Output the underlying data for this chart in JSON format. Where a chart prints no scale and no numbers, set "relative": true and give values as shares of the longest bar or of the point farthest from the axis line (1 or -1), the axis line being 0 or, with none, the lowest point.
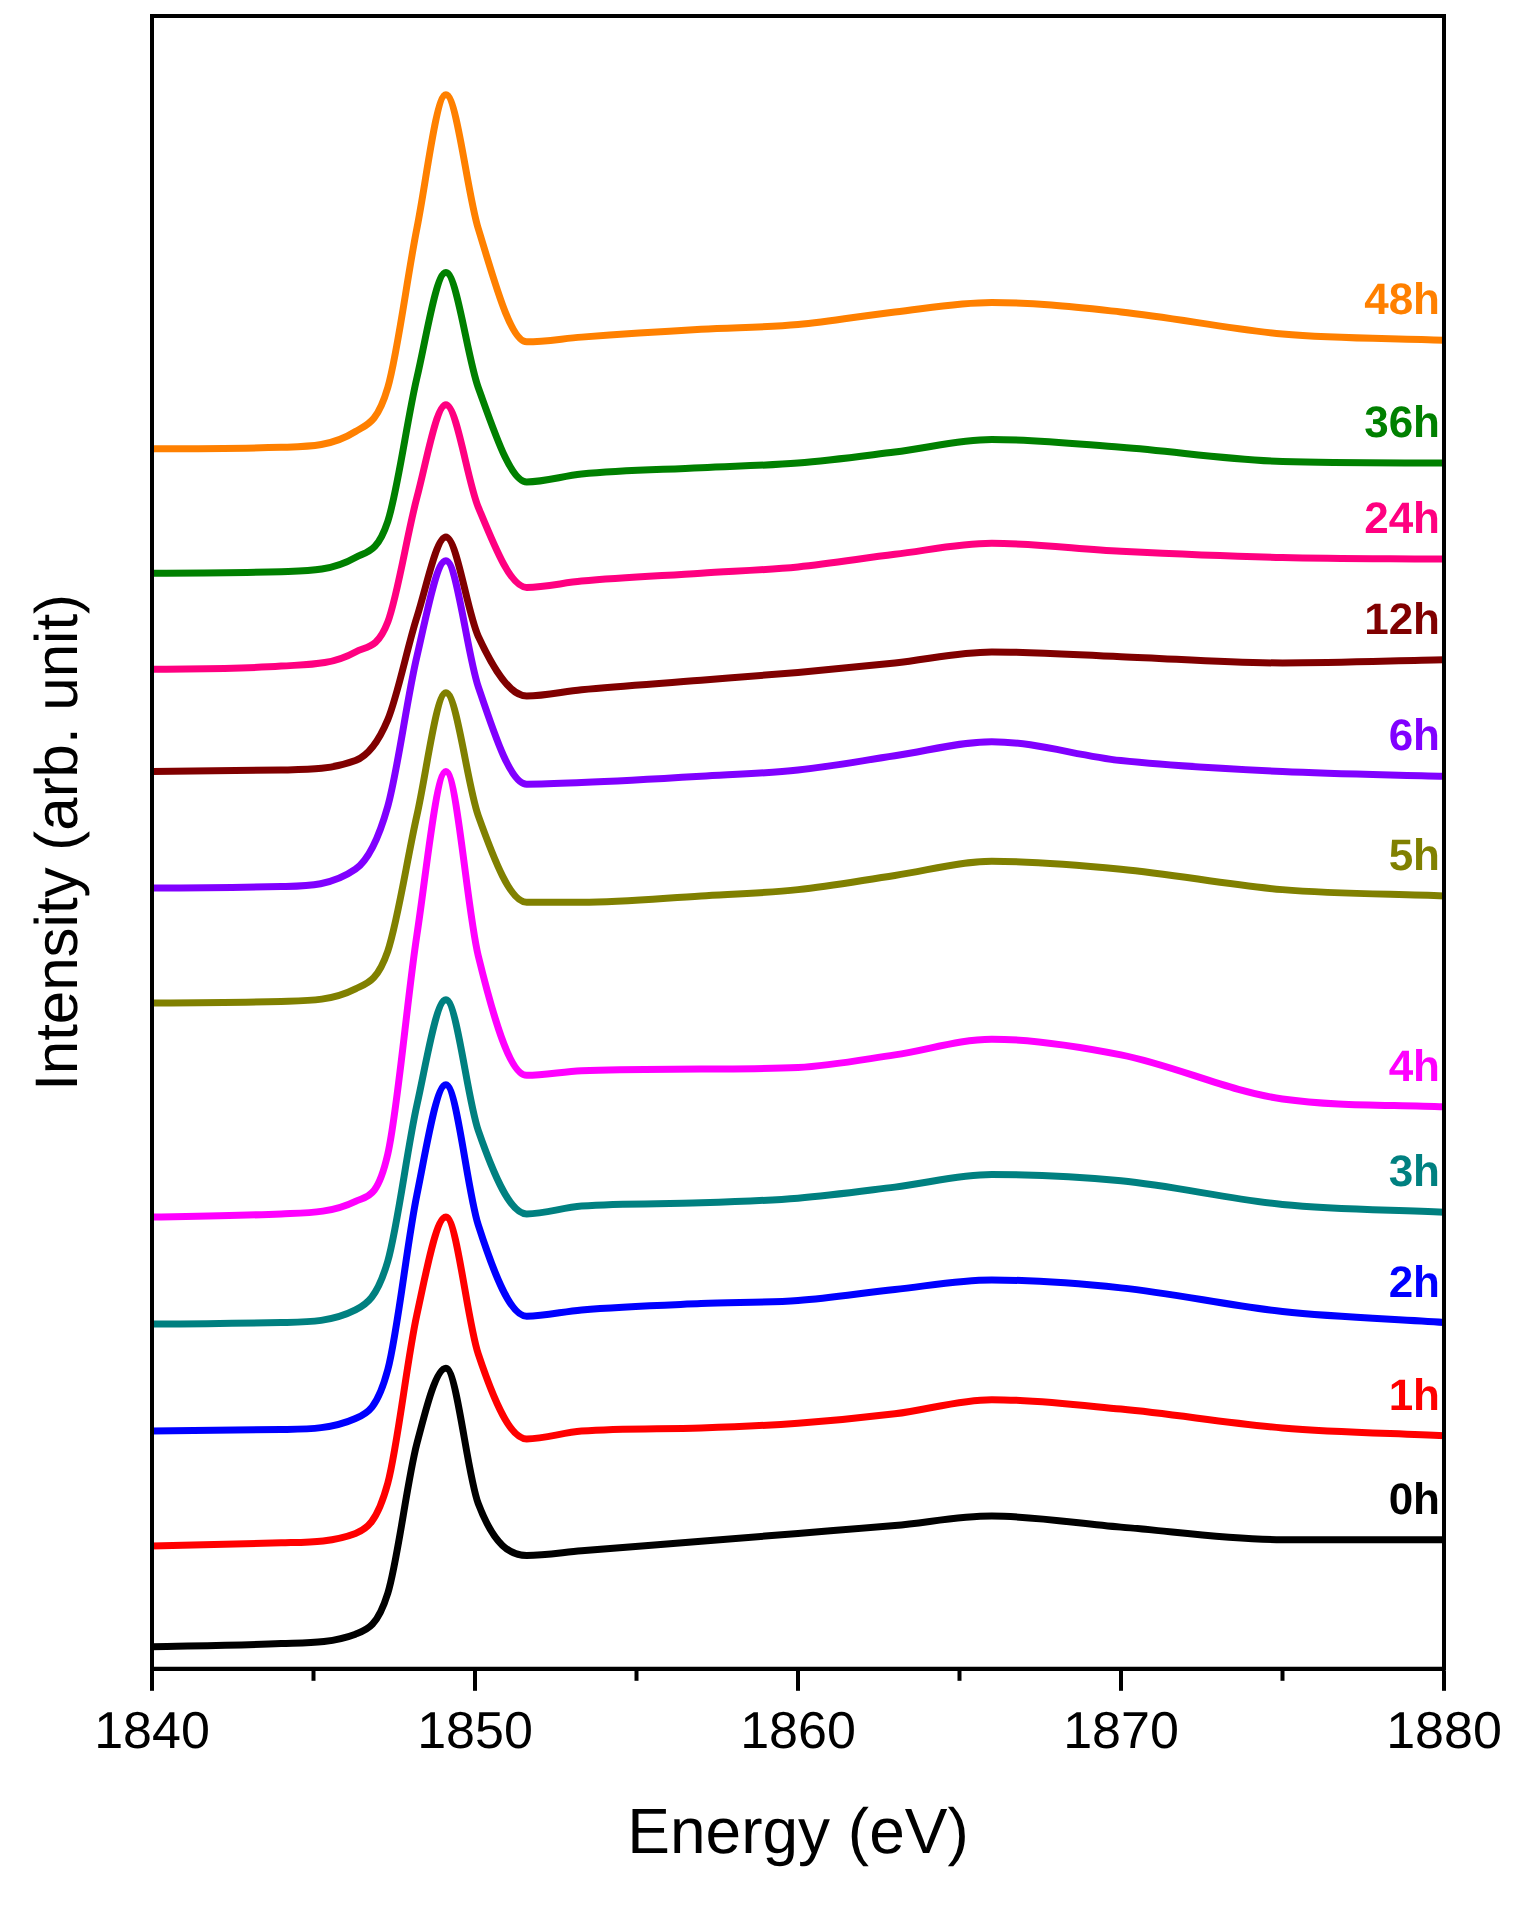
{
  "chart_data": {
    "type": "line",
    "relative": true,
    "xlabel": "Energy (eV)",
    "ylabel": "Intensity (arb. unit)",
    "xlim": [
      1840,
      1880
    ],
    "xticks": [
      1840,
      1850,
      1860,
      1870,
      1880
    ],
    "grid": false,
    "legend": false,
    "marker": "none",
    "line_style": "solid",
    "x": [
      1840,
      1844,
      1846.3,
      1847.3,
      1848.2,
      1849.1,
      1850.1,
      1851.6,
      1853.3,
      1857,
      1860,
      1863,
      1866,
      1870,
      1875,
      1880
    ],
    "series": [
      {
        "name": "0h",
        "color": "#000000",
        "values": [
          0.014,
          0.016,
          0.022,
          0.048,
          0.143,
          0.191,
          0.105,
          0.072,
          0.075,
          0.081,
          0.086,
          0.091,
          0.097,
          0.09,
          0.082,
          0.082
        ]
      },
      {
        "name": "1h",
        "color": "#ff0000",
        "values": [
          0.078,
          0.08,
          0.086,
          0.118,
          0.225,
          0.287,
          0.2,
          0.146,
          0.151,
          0.153,
          0.156,
          0.162,
          0.171,
          0.165,
          0.153,
          0.148
        ]
      },
      {
        "name": "2h",
        "color": "#0000ff",
        "values": [
          0.151,
          0.152,
          0.159,
          0.19,
          0.301,
          0.371,
          0.282,
          0.224,
          0.228,
          0.232,
          0.234,
          0.241,
          0.247,
          0.242,
          0.227,
          0.22
        ]
      },
      {
        "name": "3h",
        "color": "#008080",
        "values": [
          0.219,
          0.22,
          0.228,
          0.259,
          0.358,
          0.425,
          0.342,
          0.289,
          0.294,
          0.296,
          0.299,
          0.306,
          0.314,
          0.31,
          0.295,
          0.29
        ]
      },
      {
        "name": "4h",
        "color": "#ff00ff",
        "values": [
          0.287,
          0.289,
          0.297,
          0.327,
          0.466,
          0.57,
          0.453,
          0.377,
          0.38,
          0.381,
          0.382,
          0.39,
          0.4,
          0.39,
          0.362,
          0.357
        ]
      },
      {
        "name": "5h",
        "color": "#808000",
        "values": [
          0.423,
          0.424,
          0.432,
          0.456,
          0.542,
          0.62,
          0.542,
          0.487,
          0.487,
          0.491,
          0.495,
          0.504,
          0.513,
          0.508,
          0.495,
          0.491
        ]
      },
      {
        "name": "6h",
        "color": "#8000ff",
        "values": [
          0.496,
          0.497,
          0.508,
          0.548,
          0.643,
          0.704,
          0.624,
          0.562,
          0.563,
          0.567,
          0.571,
          0.58,
          0.589,
          0.577,
          0.57,
          0.567
        ]
      },
      {
        "name": "12h",
        "color": "#800000",
        "values": [
          0.57,
          0.571,
          0.577,
          0.603,
          0.668,
          0.719,
          0.656,
          0.618,
          0.622,
          0.628,
          0.633,
          0.639,
          0.646,
          0.643,
          0.639,
          0.641
        ]
      },
      {
        "name": "24h",
        "color": "#ff0080",
        "values": [
          0.635,
          0.637,
          0.646,
          0.665,
          0.744,
          0.803,
          0.738,
          0.687,
          0.691,
          0.696,
          0.7,
          0.708,
          0.715,
          0.71,
          0.706,
          0.705
        ]
      },
      {
        "name": "36h",
        "color": "#008000",
        "values": [
          0.696,
          0.697,
          0.706,
          0.729,
          0.82,
          0.887,
          0.814,
          0.754,
          0.759,
          0.763,
          0.766,
          0.773,
          0.781,
          0.776,
          0.767,
          0.766
        ]
      },
      {
        "name": "48h",
        "color": "#ff8000",
        "values": [
          0.775,
          0.776,
          0.786,
          0.814,
          0.915,
          1,
          0.915,
          0.843,
          0.846,
          0.851,
          0.854,
          0.862,
          0.868,
          0.862,
          0.848,
          0.844
        ]
      }
    ]
  }
}
